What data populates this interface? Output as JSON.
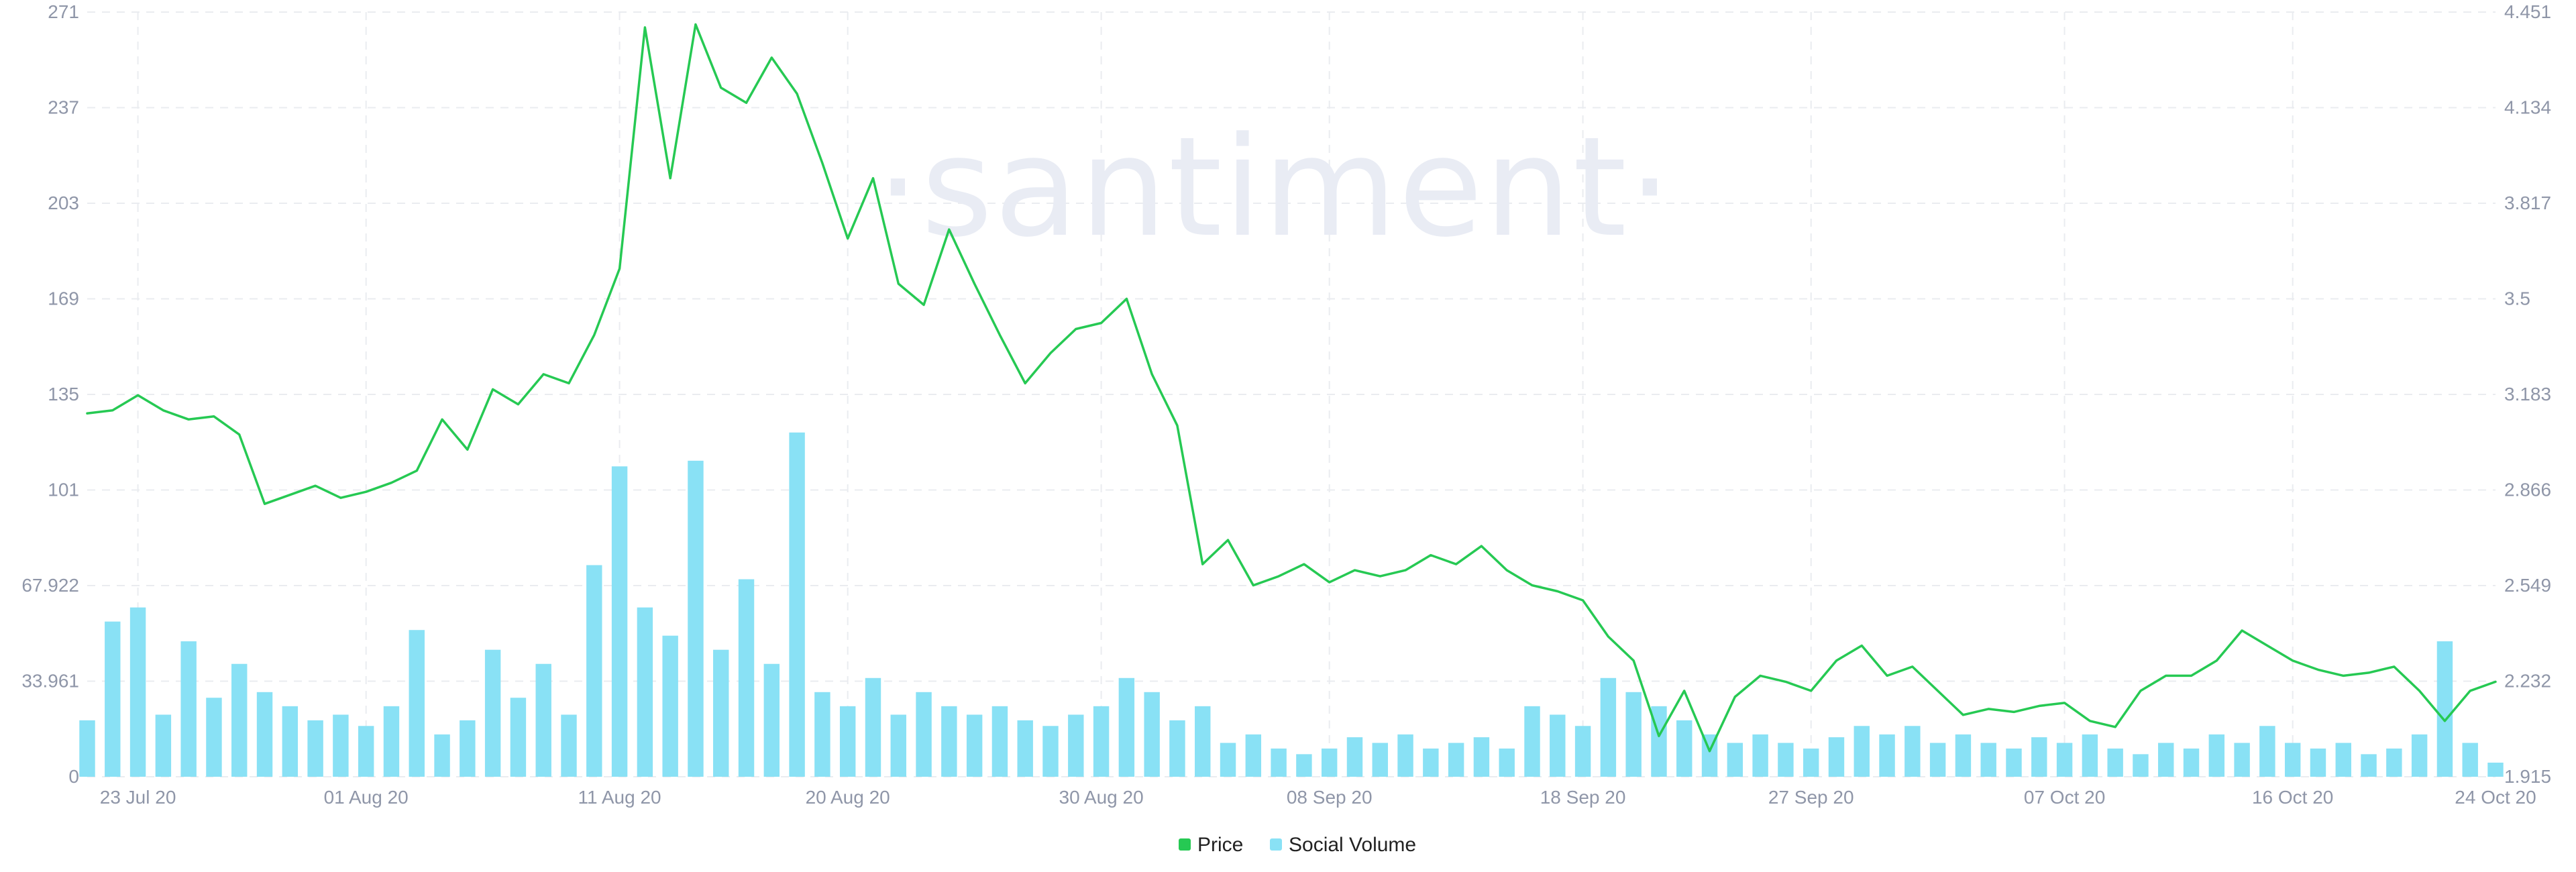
{
  "watermark": "·santiment·",
  "legend": {
    "price_label": "Price",
    "social_label": "Social Volume"
  },
  "colors": {
    "price": "#26c953",
    "social_volume": "#89e1f5",
    "grid": "#eaecf0",
    "axis_text": "#8f96a8"
  },
  "chart_data": {
    "type": "line",
    "title": "",
    "x_range": [
      "2020-07-21",
      "2020-10-24"
    ],
    "x_ticks": [
      {
        "date": "2020-07-23",
        "label": "23 Jul 20"
      },
      {
        "date": "2020-08-01",
        "label": "01 Aug 20"
      },
      {
        "date": "2020-08-11",
        "label": "11 Aug 20"
      },
      {
        "date": "2020-08-20",
        "label": "20 Aug 20"
      },
      {
        "date": "2020-08-30",
        "label": "30 Aug 20"
      },
      {
        "date": "2020-09-08",
        "label": "08 Sep 20"
      },
      {
        "date": "2020-09-18",
        "label": "18 Sep 20"
      },
      {
        "date": "2020-09-27",
        "label": "27 Sep 20"
      },
      {
        "date": "2020-10-07",
        "label": "07 Oct 20"
      },
      {
        "date": "2020-10-16",
        "label": "16 Oct 20"
      },
      {
        "date": "2020-10-24",
        "label": "24 Oct 20"
      }
    ],
    "y_left": {
      "name": "Social Volume",
      "range": [
        0,
        271
      ],
      "ticks": [
        "0",
        "33.961",
        "67.922",
        "101",
        "135",
        "169",
        "203",
        "237",
        "271"
      ]
    },
    "y_right": {
      "name": "Price",
      "range": [
        1.915,
        4.451
      ],
      "ticks": [
        "1.915",
        "2.232",
        "2.549",
        "2.866",
        "3.183",
        "3.5",
        "3.817",
        "4.134",
        "4.451"
      ]
    },
    "grid": true,
    "legend_position": "bottom-center",
    "series": [
      {
        "name": "Price",
        "type": "line",
        "axis": "right",
        "points": [
          [
            "2020-07-21",
            3.12
          ],
          [
            "2020-07-22",
            3.13
          ],
          [
            "2020-07-23",
            3.18
          ],
          [
            "2020-07-24",
            3.13
          ],
          [
            "2020-07-25",
            3.1
          ],
          [
            "2020-07-26",
            3.11
          ],
          [
            "2020-07-27",
            3.05
          ],
          [
            "2020-07-28",
            2.82
          ],
          [
            "2020-07-29",
            2.85
          ],
          [
            "2020-07-30",
            2.88
          ],
          [
            "2020-07-31",
            2.84
          ],
          [
            "2020-08-01",
            2.86
          ],
          [
            "2020-08-02",
            2.89
          ],
          [
            "2020-08-03",
            2.93
          ],
          [
            "2020-08-04",
            3.1
          ],
          [
            "2020-08-05",
            3.0
          ],
          [
            "2020-08-06",
            3.2
          ],
          [
            "2020-08-07",
            3.15
          ],
          [
            "2020-08-08",
            3.25
          ],
          [
            "2020-08-09",
            3.22
          ],
          [
            "2020-08-10",
            3.38
          ],
          [
            "2020-08-11",
            3.6
          ],
          [
            "2020-08-12",
            4.4
          ],
          [
            "2020-08-13",
            3.9
          ],
          [
            "2020-08-14",
            4.41
          ],
          [
            "2020-08-15",
            4.2
          ],
          [
            "2020-08-16",
            4.15
          ],
          [
            "2020-08-17",
            4.3
          ],
          [
            "2020-08-18",
            4.18
          ],
          [
            "2020-08-19",
            3.95
          ],
          [
            "2020-08-20",
            3.7
          ],
          [
            "2020-08-21",
            3.9
          ],
          [
            "2020-08-22",
            3.55
          ],
          [
            "2020-08-23",
            3.48
          ],
          [
            "2020-08-24",
            3.73
          ],
          [
            "2020-08-25",
            3.55
          ],
          [
            "2020-08-26",
            3.38
          ],
          [
            "2020-08-27",
            3.22
          ],
          [
            "2020-08-28",
            3.32
          ],
          [
            "2020-08-29",
            3.4
          ],
          [
            "2020-08-30",
            3.42
          ],
          [
            "2020-08-31",
            3.5
          ],
          [
            "2020-09-01",
            3.25
          ],
          [
            "2020-09-02",
            3.08
          ],
          [
            "2020-09-03",
            2.62
          ],
          [
            "2020-09-04",
            2.7
          ],
          [
            "2020-09-05",
            2.55
          ],
          [
            "2020-09-06",
            2.58
          ],
          [
            "2020-09-07",
            2.62
          ],
          [
            "2020-09-08",
            2.56
          ],
          [
            "2020-09-09",
            2.6
          ],
          [
            "2020-09-10",
            2.58
          ],
          [
            "2020-09-11",
            2.6
          ],
          [
            "2020-09-12",
            2.65
          ],
          [
            "2020-09-13",
            2.62
          ],
          [
            "2020-09-14",
            2.68
          ],
          [
            "2020-09-15",
            2.6
          ],
          [
            "2020-09-16",
            2.55
          ],
          [
            "2020-09-17",
            2.53
          ],
          [
            "2020-09-18",
            2.5
          ],
          [
            "2020-09-19",
            2.38
          ],
          [
            "2020-09-20",
            2.3
          ],
          [
            "2020-09-21",
            2.05
          ],
          [
            "2020-09-22",
            2.2
          ],
          [
            "2020-09-23",
            2.0
          ],
          [
            "2020-09-24",
            2.18
          ],
          [
            "2020-09-25",
            2.25
          ],
          [
            "2020-09-26",
            2.23
          ],
          [
            "2020-09-27",
            2.2
          ],
          [
            "2020-09-28",
            2.3
          ],
          [
            "2020-09-29",
            2.35
          ],
          [
            "2020-09-30",
            2.25
          ],
          [
            "2020-10-01",
            2.28
          ],
          [
            "2020-10-02",
            2.2
          ],
          [
            "2020-10-03",
            2.12
          ],
          [
            "2020-10-04",
            2.14
          ],
          [
            "2020-10-05",
            2.13
          ],
          [
            "2020-10-06",
            2.15
          ],
          [
            "2020-10-07",
            2.16
          ],
          [
            "2020-10-08",
            2.1
          ],
          [
            "2020-10-09",
            2.08
          ],
          [
            "2020-10-10",
            2.2
          ],
          [
            "2020-10-11",
            2.25
          ],
          [
            "2020-10-12",
            2.25
          ],
          [
            "2020-10-13",
            2.3
          ],
          [
            "2020-10-14",
            2.4
          ],
          [
            "2020-10-15",
            2.35
          ],
          [
            "2020-10-16",
            2.3
          ],
          [
            "2020-10-17",
            2.27
          ],
          [
            "2020-10-18",
            2.25
          ],
          [
            "2020-10-19",
            2.26
          ],
          [
            "2020-10-20",
            2.28
          ],
          [
            "2020-10-21",
            2.2
          ],
          [
            "2020-10-22",
            2.1
          ],
          [
            "2020-10-23",
            2.2
          ],
          [
            "2020-10-24",
            2.23
          ]
        ]
      },
      {
        "name": "Social Volume",
        "type": "bar",
        "axis": "left",
        "points": [
          [
            "2020-07-21",
            20
          ],
          [
            "2020-07-22",
            55
          ],
          [
            "2020-07-23",
            60
          ],
          [
            "2020-07-24",
            22
          ],
          [
            "2020-07-25",
            48
          ],
          [
            "2020-07-26",
            28
          ],
          [
            "2020-07-27",
            40
          ],
          [
            "2020-07-28",
            30
          ],
          [
            "2020-07-29",
            25
          ],
          [
            "2020-07-30",
            20
          ],
          [
            "2020-07-31",
            22
          ],
          [
            "2020-08-01",
            18
          ],
          [
            "2020-08-02",
            25
          ],
          [
            "2020-08-03",
            52
          ],
          [
            "2020-08-04",
            15
          ],
          [
            "2020-08-05",
            20
          ],
          [
            "2020-08-06",
            45
          ],
          [
            "2020-08-07",
            28
          ],
          [
            "2020-08-08",
            40
          ],
          [
            "2020-08-09",
            22
          ],
          [
            "2020-08-10",
            75
          ],
          [
            "2020-08-11",
            110
          ],
          [
            "2020-08-12",
            60
          ],
          [
            "2020-08-13",
            50
          ],
          [
            "2020-08-14",
            112
          ],
          [
            "2020-08-15",
            45
          ],
          [
            "2020-08-16",
            70
          ],
          [
            "2020-08-17",
            40
          ],
          [
            "2020-08-18",
            122
          ],
          [
            "2020-08-19",
            30
          ],
          [
            "2020-08-20",
            25
          ],
          [
            "2020-08-21",
            35
          ],
          [
            "2020-08-22",
            22
          ],
          [
            "2020-08-23",
            30
          ],
          [
            "2020-08-24",
            25
          ],
          [
            "2020-08-25",
            22
          ],
          [
            "2020-08-26",
            25
          ],
          [
            "2020-08-27",
            20
          ],
          [
            "2020-08-28",
            18
          ],
          [
            "2020-08-29",
            22
          ],
          [
            "2020-08-30",
            25
          ],
          [
            "2020-08-31",
            35
          ],
          [
            "2020-09-01",
            30
          ],
          [
            "2020-09-02",
            20
          ],
          [
            "2020-09-03",
            25
          ],
          [
            "2020-09-04",
            12
          ],
          [
            "2020-09-05",
            15
          ],
          [
            "2020-09-06",
            10
          ],
          [
            "2020-09-07",
            8
          ],
          [
            "2020-09-08",
            10
          ],
          [
            "2020-09-09",
            14
          ],
          [
            "2020-09-10",
            12
          ],
          [
            "2020-09-11",
            15
          ],
          [
            "2020-09-12",
            10
          ],
          [
            "2020-09-13",
            12
          ],
          [
            "2020-09-14",
            14
          ],
          [
            "2020-09-15",
            10
          ],
          [
            "2020-09-16",
            25
          ],
          [
            "2020-09-17",
            22
          ],
          [
            "2020-09-18",
            18
          ],
          [
            "2020-09-19",
            35
          ],
          [
            "2020-09-20",
            30
          ],
          [
            "2020-09-21",
            25
          ],
          [
            "2020-09-22",
            20
          ],
          [
            "2020-09-23",
            15
          ],
          [
            "2020-09-24",
            12
          ],
          [
            "2020-09-25",
            15
          ],
          [
            "2020-09-26",
            12
          ],
          [
            "2020-09-27",
            10
          ],
          [
            "2020-09-28",
            14
          ],
          [
            "2020-09-29",
            18
          ],
          [
            "2020-09-30",
            15
          ],
          [
            "2020-10-01",
            18
          ],
          [
            "2020-10-02",
            12
          ],
          [
            "2020-10-03",
            15
          ],
          [
            "2020-10-04",
            12
          ],
          [
            "2020-10-05",
            10
          ],
          [
            "2020-10-06",
            14
          ],
          [
            "2020-10-07",
            12
          ],
          [
            "2020-10-08",
            15
          ],
          [
            "2020-10-09",
            10
          ],
          [
            "2020-10-10",
            8
          ],
          [
            "2020-10-11",
            12
          ],
          [
            "2020-10-12",
            10
          ],
          [
            "2020-10-13",
            15
          ],
          [
            "2020-10-14",
            12
          ],
          [
            "2020-10-15",
            18
          ],
          [
            "2020-10-16",
            12
          ],
          [
            "2020-10-17",
            10
          ],
          [
            "2020-10-18",
            12
          ],
          [
            "2020-10-19",
            8
          ],
          [
            "2020-10-20",
            10
          ],
          [
            "2020-10-21",
            15
          ],
          [
            "2020-10-22",
            48
          ],
          [
            "2020-10-23",
            12
          ],
          [
            "2020-10-24",
            5
          ]
        ]
      }
    ]
  }
}
